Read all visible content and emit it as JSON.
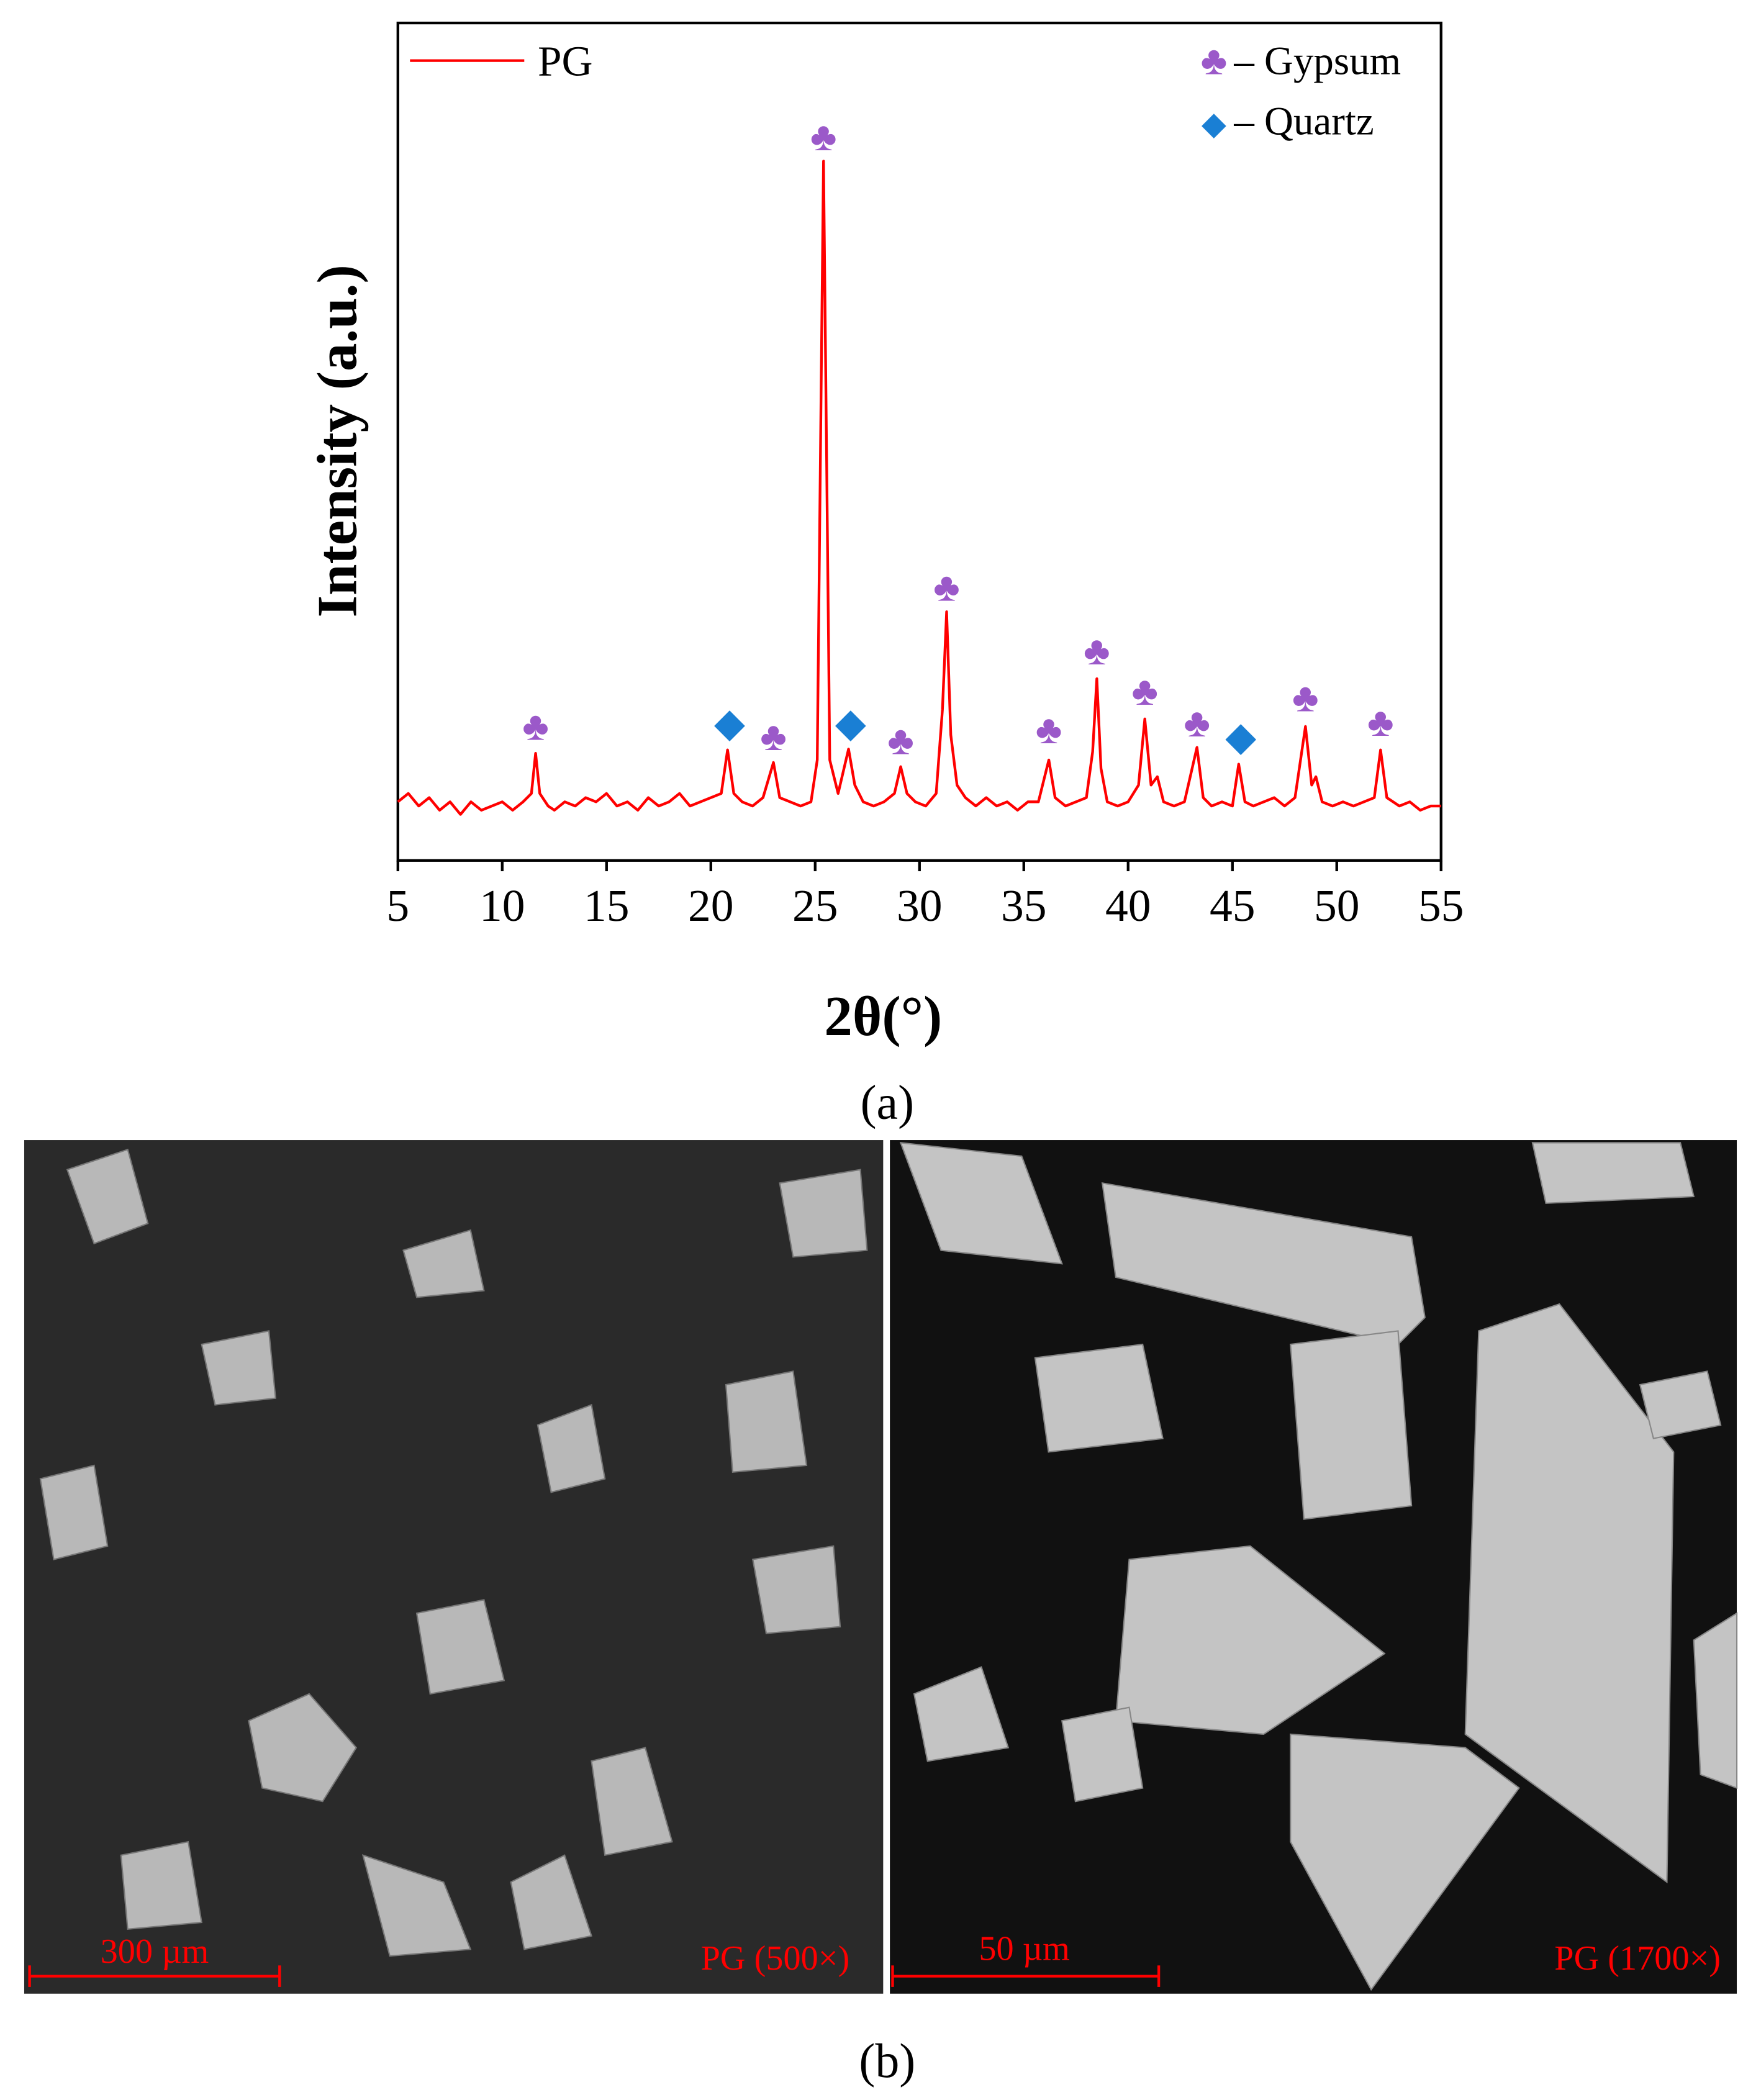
{
  "chart_data": {
    "type": "line",
    "x_label": "2θ(°)",
    "y_label": "Intensity (a.u.)",
    "xlim": [
      5,
      55
    ],
    "xticks": [
      5,
      10,
      15,
      20,
      25,
      30,
      35,
      40,
      45,
      50,
      55
    ],
    "ylim": [
      0,
      100
    ],
    "grid": false,
    "legend": "upper left",
    "series": [
      {
        "name": "PG",
        "color": "#ff0000",
        "x": [
          5,
          5.5,
          6,
          6.5,
          7,
          7.5,
          8,
          8.5,
          9,
          9.5,
          10,
          10.5,
          11,
          11.4,
          11.6,
          11.8,
          12.2,
          12.5,
          13,
          13.5,
          14,
          14.5,
          15,
          15.5,
          16,
          16.5,
          17,
          17.5,
          18,
          18.5,
          19,
          19.5,
          20,
          20.5,
          20.8,
          21.1,
          21.5,
          22,
          22.5,
          23,
          23.3,
          23.8,
          24.3,
          24.8,
          25.1,
          25.4,
          25.7,
          26.1,
          26.6,
          26.9,
          27.3,
          27.8,
          28.3,
          28.8,
          29.1,
          29.4,
          29.8,
          30.3,
          30.8,
          31.1,
          31.3,
          31.5,
          31.8,
          32.2,
          32.7,
          33.2,
          33.7,
          34.2,
          34.7,
          35.2,
          35.7,
          36.2,
          36.5,
          37,
          37.5,
          38,
          38.3,
          38.5,
          38.7,
          39,
          39.5,
          40,
          40.5,
          40.8,
          41.1,
          41.4,
          41.7,
          42.2,
          42.7,
          43.3,
          43.6,
          44,
          44.5,
          45,
          45.3,
          45.6,
          46,
          46.5,
          47,
          47.5,
          48,
          48.5,
          48.8,
          49,
          49.3,
          49.8,
          50.3,
          50.8,
          51.3,
          51.8,
          52.1,
          52.4,
          53,
          53.5,
          54,
          54.5,
          55
        ],
        "values": [
          7,
          8,
          6.5,
          7.5,
          6,
          7,
          5.5,
          7,
          6,
          6.5,
          7,
          6,
          7,
          8,
          12.8,
          8,
          6.5,
          6,
          7,
          6.5,
          7.5,
          7,
          8,
          6.5,
          7,
          6,
          7.5,
          6.5,
          7,
          8,
          6.5,
          7,
          7.5,
          8,
          13.2,
          8,
          7,
          6.5,
          7.5,
          11.7,
          7.5,
          7,
          6.5,
          7,
          12,
          83.5,
          12,
          8,
          13.3,
          9,
          7,
          6.5,
          7,
          8,
          11.2,
          8,
          7,
          6.5,
          8,
          18,
          29.7,
          15,
          9,
          7.5,
          6.5,
          7.5,
          6.5,
          7,
          6,
          7,
          7,
          12,
          7.5,
          6.5,
          7,
          7.5,
          13,
          21.7,
          11,
          7,
          6.5,
          7,
          9,
          16.9,
          9,
          10,
          7,
          6.5,
          7,
          13.5,
          7.5,
          6.5,
          7,
          6.5,
          11.5,
          7,
          6.5,
          7,
          7.5,
          6.5,
          7.5,
          16,
          9,
          10,
          7,
          6.5,
          7,
          6.5,
          7,
          7.5,
          13.2,
          7.5,
          6.5,
          7,
          6,
          6.5,
          6.5
        ]
      }
    ],
    "markers": [
      {
        "name": "– Gypsum",
        "symbol": "♣",
        "color": "#9b59c9",
        "x": [
          11.6,
          23,
          25.4,
          29.1,
          31.3,
          36.2,
          38.5,
          40.8,
          43.3,
          48.5,
          52.1
        ],
        "values": [
          16,
          14.8,
          86.4,
          14.3,
          32.6,
          15.6,
          25,
          20.2,
          16.4,
          19.4,
          16.5
        ]
      },
      {
        "name": "– Quartz",
        "symbol": "◆",
        "color": "#1a7fd4",
        "x": [
          20.9,
          26.7,
          45.4
        ],
        "values": [
          16.4,
          16.4,
          14.8
        ]
      }
    ]
  },
  "panels": {
    "a": "(a)",
    "b": "(b)",
    "left": {
      "scale": "300 µm",
      "label": "PG (500×)"
    },
    "right": {
      "scale": "50 µm",
      "label": "PG (1700×)"
    }
  }
}
